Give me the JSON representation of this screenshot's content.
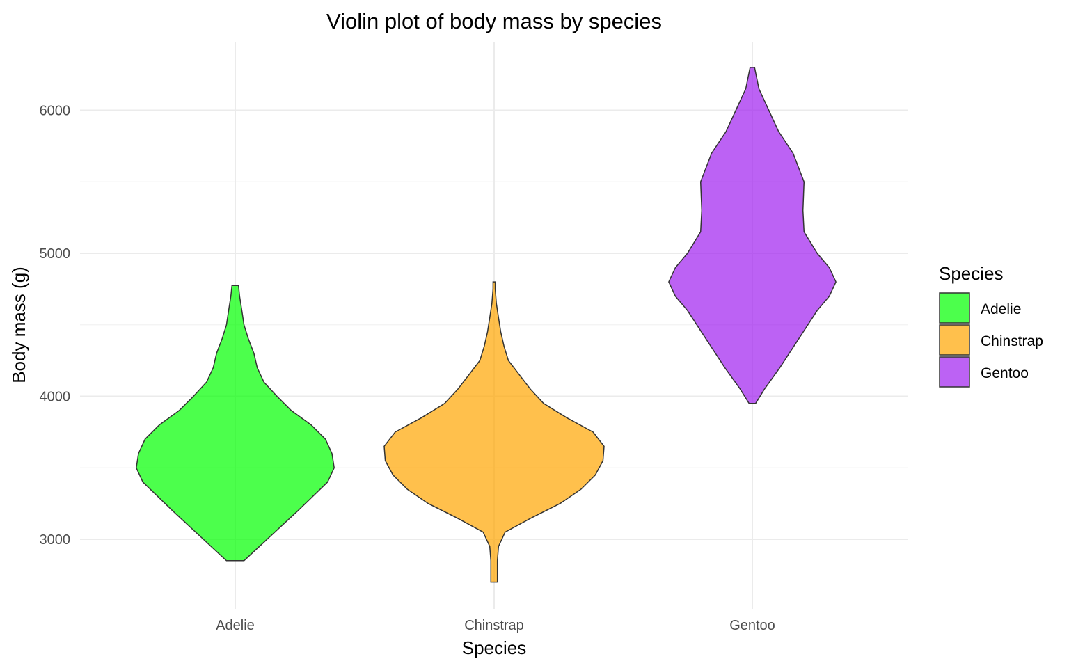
{
  "chart_data": {
    "type": "violin",
    "title": "Violin plot of body mass by species",
    "xlabel": "Species",
    "ylabel": "Body mass (g)",
    "categories": [
      "Adelie",
      "Chinstrap",
      "Gentoo"
    ],
    "y_ticks": [
      3000,
      4000,
      5000,
      6000
    ],
    "y_minor_ticks": [
      3500,
      4500,
      5500
    ],
    "ylim": [
      2500,
      6500
    ],
    "grid": true,
    "legend": {
      "title": "Species",
      "position": "right",
      "entries": [
        "Adelie",
        "Chinstrap",
        "Gentoo"
      ]
    },
    "series": [
      {
        "name": "Adelie",
        "color": "#00FF00",
        "min": 2850,
        "max": 4775,
        "density": [
          [
            2850,
            0.08
          ],
          [
            3000,
            0.29
          ],
          [
            3200,
            0.57
          ],
          [
            3400,
            0.84
          ],
          [
            3500,
            0.9
          ],
          [
            3600,
            0.88
          ],
          [
            3700,
            0.82
          ],
          [
            3800,
            0.69
          ],
          [
            3900,
            0.51
          ],
          [
            4000,
            0.38
          ],
          [
            4100,
            0.26
          ],
          [
            4200,
            0.2
          ],
          [
            4300,
            0.17
          ],
          [
            4400,
            0.12
          ],
          [
            4500,
            0.08
          ],
          [
            4600,
            0.06
          ],
          [
            4700,
            0.04
          ],
          [
            4775,
            0.03
          ]
        ]
      },
      {
        "name": "Chinstrap",
        "color": "#FFA500",
        "min": 2700,
        "max": 4800,
        "density": [
          [
            2700,
            0.03
          ],
          [
            2850,
            0.03
          ],
          [
            2950,
            0.04
          ],
          [
            3050,
            0.1
          ],
          [
            3150,
            0.34
          ],
          [
            3250,
            0.6
          ],
          [
            3350,
            0.79
          ],
          [
            3450,
            0.92
          ],
          [
            3550,
            0.99
          ],
          [
            3650,
            1.0
          ],
          [
            3750,
            0.9
          ],
          [
            3850,
            0.66
          ],
          [
            3950,
            0.45
          ],
          [
            4050,
            0.33
          ],
          [
            4150,
            0.23
          ],
          [
            4250,
            0.13
          ],
          [
            4350,
            0.09
          ],
          [
            4450,
            0.06
          ],
          [
            4550,
            0.04
          ],
          [
            4650,
            0.02
          ],
          [
            4750,
            0.01
          ],
          [
            4800,
            0.01
          ]
        ]
      },
      {
        "name": "Gentoo",
        "color": "#A020F0",
        "min": 3950,
        "max": 6300,
        "density": [
          [
            3950,
            0.03
          ],
          [
            4050,
            0.11
          ],
          [
            4200,
            0.25
          ],
          [
            4400,
            0.42
          ],
          [
            4600,
            0.59
          ],
          [
            4700,
            0.7
          ],
          [
            4800,
            0.76
          ],
          [
            4900,
            0.7
          ],
          [
            5000,
            0.59
          ],
          [
            5150,
            0.47
          ],
          [
            5300,
            0.46
          ],
          [
            5500,
            0.47
          ],
          [
            5700,
            0.37
          ],
          [
            5850,
            0.24
          ],
          [
            6000,
            0.15
          ],
          [
            6150,
            0.06
          ],
          [
            6300,
            0.02
          ]
        ]
      }
    ]
  }
}
